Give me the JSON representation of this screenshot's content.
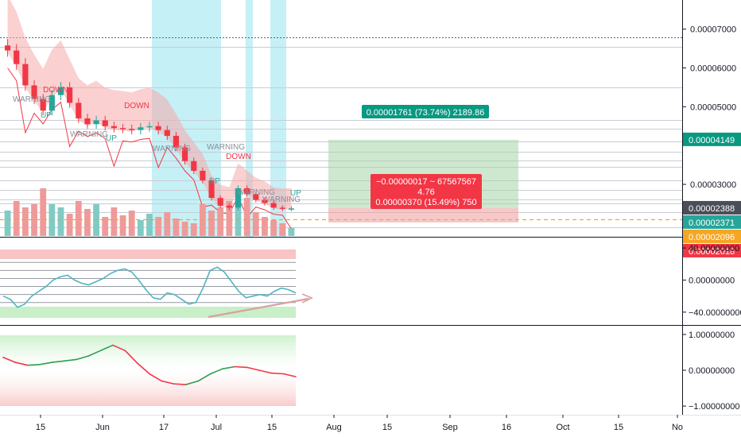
{
  "chart_data": [
    {
      "type": "candlestick",
      "title": "",
      "x_ticks": [
        "15",
        "Jun",
        "17",
        "Jul",
        "15",
        "Aug",
        "15",
        "Sep",
        "16",
        "Oct",
        "15",
        "No"
      ],
      "y_ticks": [
        "0.00007000",
        "0.00006000",
        "0.00005000",
        "0.00003000"
      ],
      "ylim": [
        1.65e-05,
        7.75e-05
      ],
      "price_labels": [
        {
          "text": "0.00004149",
          "color": "#089981"
        },
        {
          "text": "0.00002388",
          "color": "#4a4e59"
        },
        {
          "text": "0.00002371",
          "color": "#26a69a"
        },
        {
          "text": "0.00002096",
          "color": "#f5a623"
        },
        {
          "text": "0.00002018",
          "color": "#f23645"
        }
      ],
      "close_series": [
        6.45e-05,
        6.1e-05,
        5.55e-05,
        5.2e-05,
        4.9e-05,
        5.3e-05,
        5.5e-05,
        5.1e-05,
        4.7e-05,
        4.55e-05,
        4.65e-05,
        4.5e-05,
        4.45e-05,
        4.43e-05,
        4.4e-05,
        4.47e-05,
        4.5e-05,
        4.4e-05,
        4.25e-05,
        3.95e-05,
        3.6e-05,
        3.35e-05,
        3.1e-05,
        2.65e-05,
        2.45e-05,
        2.4e-05,
        2.9e-05,
        2.75e-05,
        2.6e-05,
        2.52e-05,
        2.4e-05,
        2.37e-05,
        2.38e-05
      ],
      "volume_series": [
        16,
        22,
        18,
        20,
        30,
        20,
        18,
        14,
        22,
        17,
        20,
        12,
        18,
        13,
        16,
        10,
        14,
        12,
        15,
        11,
        9,
        8,
        20,
        16,
        18,
        22,
        30,
        24,
        15,
        12,
        10,
        8,
        5
      ],
      "volume_value_axis": false,
      "signals": [
        {
          "text": "DOWN",
          "color": "#f23645"
        },
        {
          "text": "UP",
          "color": "#26a69a"
        },
        {
          "text": "WARNING",
          "color": "#8a8f99"
        },
        {
          "text": "DOWN",
          "color": "#f23645"
        },
        {
          "text": "WARNING",
          "color": "#8a8f99"
        },
        {
          "text": "UP",
          "color": "#26a69a"
        },
        {
          "text": "WARNING",
          "color": "#8a8f99"
        },
        {
          "text": "WARNING",
          "color": "#8a8f99"
        },
        {
          "text": "DOWN",
          "color": "#f23645"
        },
        {
          "text": "UP",
          "color": "#26a69a"
        },
        {
          "text": "WARNING",
          "color": "#8a8f99"
        },
        {
          "text": "WARNING",
          "color": "#8a8f99"
        },
        {
          "text": "UP",
          "color": "#26a69a"
        }
      ],
      "long_position": {
        "target_label": "0.00001761 (73.74%) 2189.86",
        "entry_label": "−0.00000017 ~ 67567567",
        "ratio_label": "4.76",
        "stop_label": "0.00000370 (15.49%) 750",
        "target_price": 4.149e-05,
        "entry_price": 2.388e-05,
        "stop_price": 2.018e-05
      },
      "dotted_level": 6.78e-05,
      "dashed_level": 2.096e-05
    },
    {
      "type": "line",
      "title": "",
      "y_ticks": [
        "40.00000000",
        "0.00000000",
        "−40.00000000"
      ],
      "ylim": [
        -55,
        52
      ],
      "values": [
        -20,
        -24,
        -34,
        -30,
        -20,
        -14,
        -8,
        0,
        4,
        6,
        0,
        -4,
        -6,
        -2,
        2,
        8,
        12,
        14,
        10,
        0,
        -12,
        -22,
        -24,
        -16,
        -18,
        -24,
        -30,
        -28,
        -10,
        12,
        16,
        10,
        -2,
        -14,
        -22,
        -20,
        -18,
        -20,
        -14,
        -10,
        -12,
        -16
      ]
    },
    {
      "type": "line",
      "title": "",
      "y_ticks": [
        "1.00000000",
        "0.00000000",
        "−1.00000000"
      ],
      "ylim": [
        -1.22,
        1.22
      ],
      "values": [
        0.36,
        0.22,
        0.14,
        0.16,
        0.22,
        0.26,
        0.3,
        0.4,
        0.55,
        0.7,
        0.55,
        0.2,
        -0.1,
        -0.3,
        -0.38,
        -0.4,
        -0.3,
        -0.1,
        0.04,
        0.1,
        0.08,
        0.0,
        -0.08,
        -0.1,
        -0.18
      ]
    }
  ],
  "colors": {
    "up": "#26a69a",
    "down": "#f23645",
    "highlight_band": "#b2ebf2",
    "cloud": "#f5a9a9"
  }
}
